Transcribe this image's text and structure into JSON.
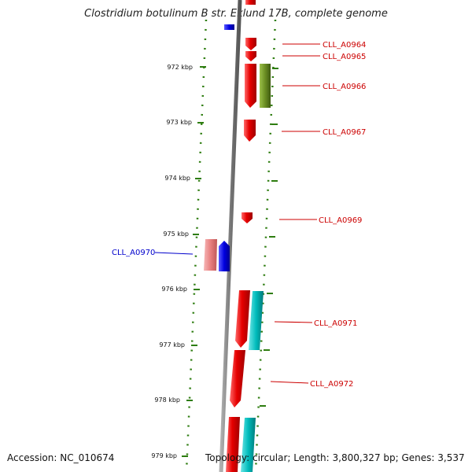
{
  "title": "Clostridium botulinum B str. Eklund 17B, complete genome",
  "footer": {
    "accession": "Accession: NC_010674",
    "stats": "Topology: circular; Length: 3,800,327 bp; Genes: 3,537"
  },
  "colors": {
    "red_gene": "#e60000",
    "pink_gene": "#e88080",
    "blue_gene": "#0000e0",
    "olive_gene": "#6b8e23",
    "cyan_gene": "#00bcbc",
    "backbone": "#808080",
    "tick_green": "#2e7d10",
    "label_red": "#cc0000",
    "label_blue": "#0000cc"
  },
  "ticks": [
    {
      "label": "972 kbp"
    },
    {
      "label": "973 kbp"
    },
    {
      "label": "974 kbp"
    },
    {
      "label": "975 kbp"
    },
    {
      "label": "976 kbp"
    },
    {
      "label": "977 kbp"
    },
    {
      "label": "978 kbp"
    },
    {
      "label": "979 kbp"
    }
  ],
  "gene_labels": [
    {
      "text": "CLL_A0964",
      "color": "label_red"
    },
    {
      "text": "CLL_A0965",
      "color": "label_red"
    },
    {
      "text": "CLL_A0966",
      "color": "label_red"
    },
    {
      "text": "CLL_A0967",
      "color": "label_red"
    },
    {
      "text": "CLL_A0969",
      "color": "label_red"
    },
    {
      "text": "CLL_A0970",
      "color": "label_blue"
    },
    {
      "text": "CLL_A0971",
      "color": "label_red"
    },
    {
      "text": "CLL_A0972",
      "color": "label_red"
    }
  ]
}
